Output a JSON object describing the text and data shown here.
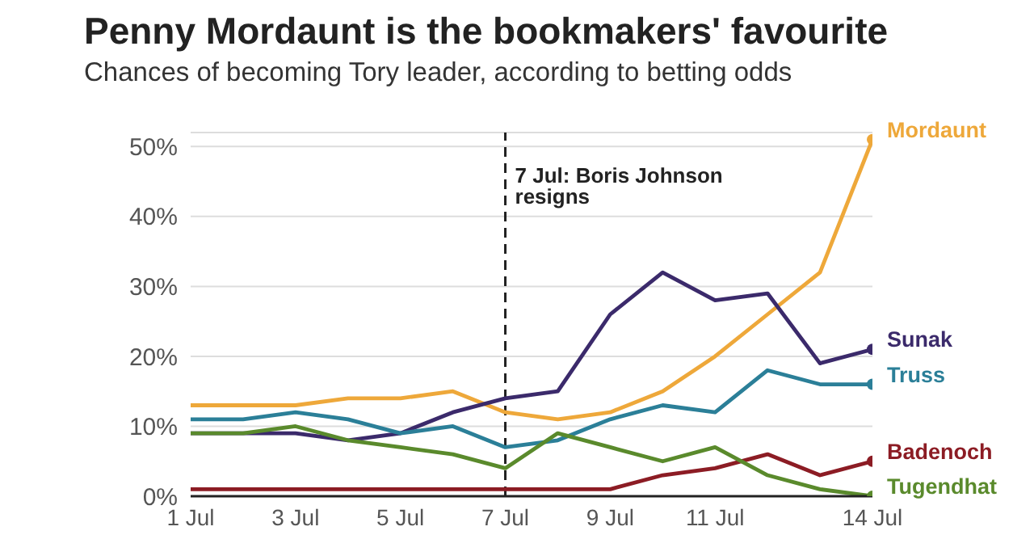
{
  "chart_data": {
    "type": "line",
    "title": "Penny Mordaunt is the bookmakers' favourite",
    "subtitle": "Chances of becoming Tory leader, according to betting odds",
    "x": [
      "--07-01",
      "--07-02",
      "--07-03",
      "--07-04",
      "--07-05",
      "--07-06",
      "--07-07",
      "--07-08",
      "--07-09",
      "--07-10",
      "--07-11",
      "--07-12",
      "--07-13",
      "--07-14"
    ],
    "series": [
      {
        "name": "Mordaunt",
        "color": "#eea83a",
        "values": [
          13,
          13,
          13,
          14,
          14,
          15,
          12,
          11,
          12,
          15,
          20,
          26,
          32,
          51
        ]
      },
      {
        "name": "Sunak",
        "color": "#3b2a6b",
        "values": [
          9,
          9,
          9,
          8,
          9,
          12,
          14,
          15,
          26,
          32,
          28,
          29,
          19,
          21
        ]
      },
      {
        "name": "Truss",
        "color": "#2b7f98",
        "values": [
          11,
          11,
          12,
          11,
          9,
          10,
          7,
          8,
          11,
          13,
          12,
          18,
          16,
          16
        ]
      },
      {
        "name": "Badenoch",
        "color": "#8c1c24",
        "values": [
          1,
          1,
          1,
          1,
          1,
          1,
          1,
          1,
          1,
          3,
          4,
          6,
          3,
          5
        ]
      },
      {
        "name": "Tugendhat",
        "color": "#5a8a2c",
        "values": [
          9,
          9,
          10,
          8,
          7,
          6,
          4,
          9,
          7,
          5,
          7,
          3,
          1,
          0
        ]
      }
    ],
    "xlim": [
      "--07-01",
      "--07-14"
    ],
    "xticks": [
      {
        "value": "--07-01",
        "label": "1 Jul"
      },
      {
        "value": "--07-03",
        "label": "3 Jul"
      },
      {
        "value": "--07-05",
        "label": "5 Jul"
      },
      {
        "value": "--07-07",
        "label": "7 Jul"
      },
      {
        "value": "--07-09",
        "label": "9 Jul"
      },
      {
        "value": "--07-11",
        "label": "11 Jul"
      },
      {
        "value": "--07-14",
        "label": "14 Jul"
      }
    ],
    "ylim": [
      0,
      52
    ],
    "yticks": [
      {
        "value": 0,
        "label": "0%"
      },
      {
        "value": 10,
        "label": "10%"
      },
      {
        "value": 20,
        "label": "20%"
      },
      {
        "value": 30,
        "label": "30%"
      },
      {
        "value": 40,
        "label": "40%"
      },
      {
        "value": 50,
        "label": "50%"
      }
    ],
    "grid": "y",
    "legend": false,
    "line_style": "solid",
    "ref_lines": [
      {
        "axis": "x",
        "value": "--07-07",
        "label": "7 Jul: Boris Johnson resigns",
        "color": "#222222",
        "line_style": "dashed"
      }
    ]
  }
}
